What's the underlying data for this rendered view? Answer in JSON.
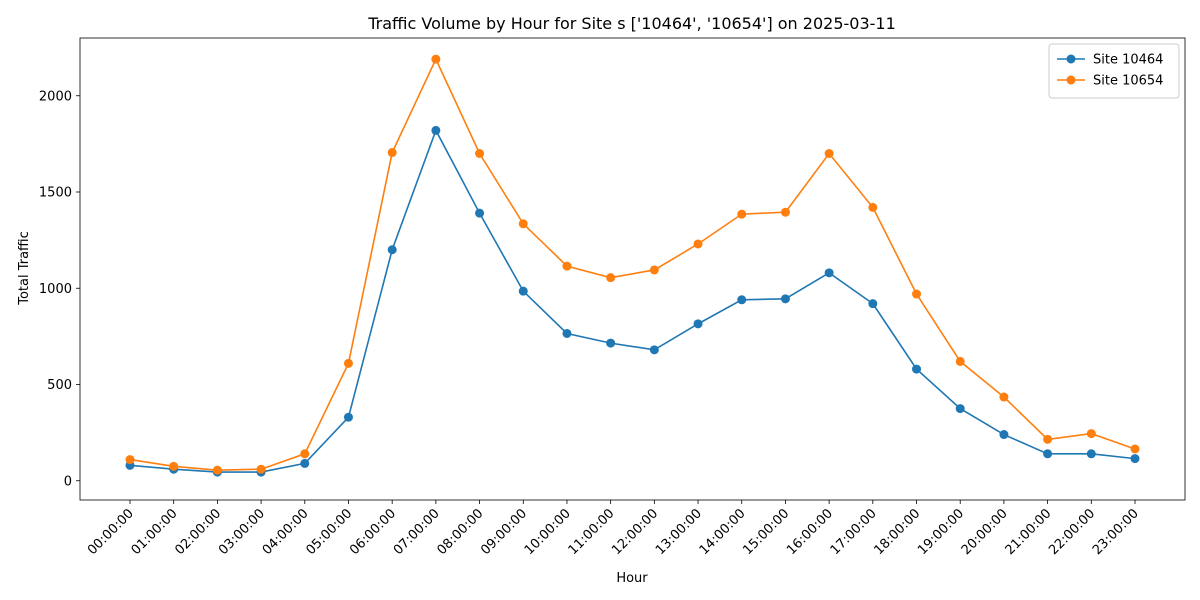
{
  "chart_data": {
    "type": "line",
    "title": "Traffic Volume by Hour for Site s ['10464', '10654'] on 2025-03-11",
    "xlabel": "Hour",
    "ylabel": "Total Traffic",
    "ylim": [
      -100,
      2300
    ],
    "yticks": [
      0,
      500,
      1000,
      1500,
      2000
    ],
    "grid": false,
    "legend_position": "top-right",
    "categories": [
      "00:00:00",
      "01:00:00",
      "02:00:00",
      "03:00:00",
      "04:00:00",
      "05:00:00",
      "06:00:00",
      "07:00:00",
      "08:00:00",
      "09:00:00",
      "10:00:00",
      "11:00:00",
      "12:00:00",
      "13:00:00",
      "14:00:00",
      "15:00:00",
      "16:00:00",
      "17:00:00",
      "18:00:00",
      "19:00:00",
      "20:00:00",
      "21:00:00",
      "22:00:00",
      "23:00:00"
    ],
    "series": [
      {
        "name": "Site 10464",
        "color": "#1f77b4",
        "values": [
          80,
          60,
          45,
          45,
          90,
          330,
          1200,
          1820,
          1390,
          985,
          765,
          715,
          680,
          815,
          940,
          945,
          1080,
          920,
          580,
          375,
          240,
          140,
          140,
          115
        ]
      },
      {
        "name": "Site 10654",
        "color": "#ff7f0e",
        "values": [
          110,
          75,
          55,
          60,
          140,
          610,
          1705,
          2190,
          1700,
          1335,
          1115,
          1055,
          1095,
          1230,
          1385,
          1395,
          1700,
          1420,
          970,
          620,
          435,
          215,
          245,
          165
        ]
      }
    ]
  }
}
